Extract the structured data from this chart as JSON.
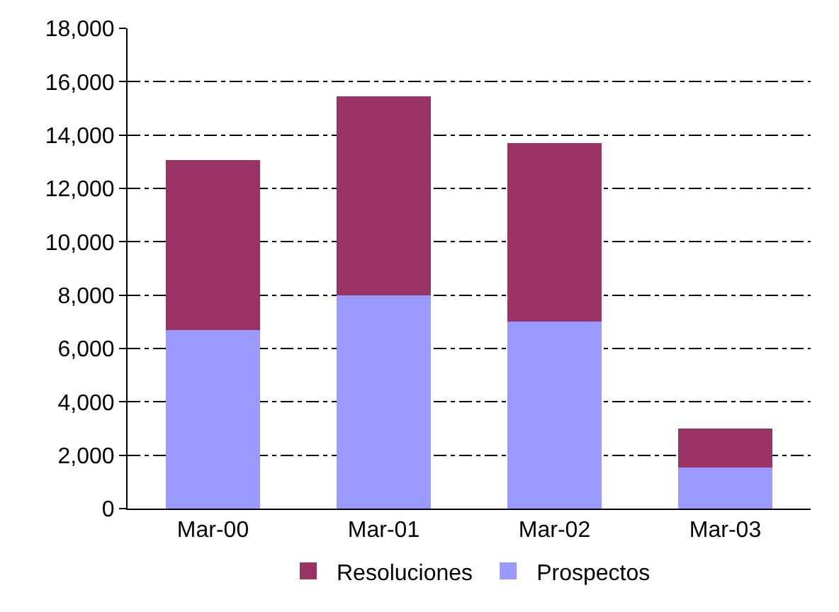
{
  "chart_data": {
    "type": "bar",
    "stacked": true,
    "categories": [
      "Mar-00",
      "Mar-01",
      "Mar-02",
      "Mar-03"
    ],
    "series": [
      {
        "name": "Prospectos",
        "color": "#9999ff",
        "values": [
          6700,
          8000,
          7000,
          1550
        ]
      },
      {
        "name": "Resoluciones",
        "color": "#993366",
        "values": [
          6350,
          7450,
          6700,
          1450
        ]
      }
    ],
    "ylim": [
      0,
      18000
    ],
    "yticks": [
      {
        "value": 0,
        "label": "0"
      },
      {
        "value": 2000,
        "label": "2,000"
      },
      {
        "value": 4000,
        "label": "4,000"
      },
      {
        "value": 6000,
        "label": "6,000"
      },
      {
        "value": 8000,
        "label": "8,000"
      },
      {
        "value": 10000,
        "label": "10,000"
      },
      {
        "value": 12000,
        "label": "12,000"
      },
      {
        "value": 14000,
        "label": "14,000"
      },
      {
        "value": 16000,
        "label": "16,000"
      },
      {
        "value": 18000,
        "label": "18,000"
      }
    ],
    "grid": "y",
    "legend": "bottom"
  }
}
